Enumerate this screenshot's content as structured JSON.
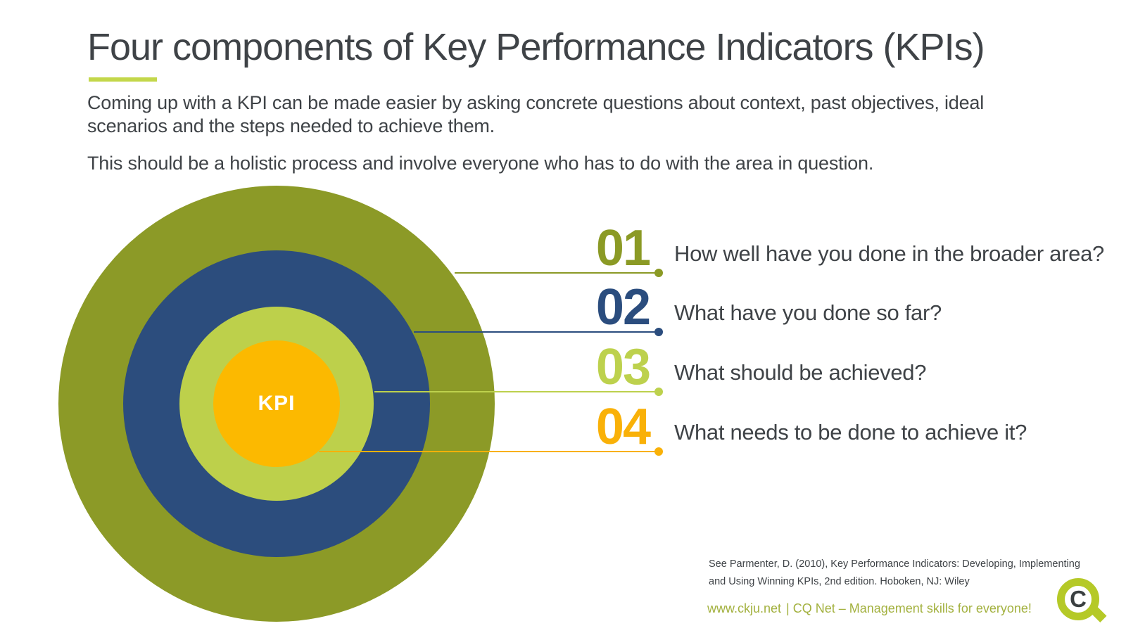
{
  "title": "Four components of Key Performance Indicators (KPIs)",
  "intro": {
    "p1_line1": "Coming up with a KPI can be made easier by asking concrete questions about context, past objectives, ideal",
    "p1_line2": "scenarios and the steps needed to achieve them.",
    "p2": "This should be a holistic process and involve everyone who has to do with the area in question."
  },
  "diagram": {
    "center_label": "KPI",
    "ring_colors": {
      "broader_area": "#8c9a27",
      "done_so_far": "#2c4d7d",
      "to_achieve": "#bdd04b",
      "kpi_core": "#fcb900"
    }
  },
  "items": [
    {
      "number": "01",
      "color": "#8b9a25",
      "question": "How well have you done in the broader area?"
    },
    {
      "number": "02",
      "color": "#2b4d7e",
      "question": "What have you done so far?"
    },
    {
      "number": "03",
      "color": "#bdd14d",
      "question": "What should be achieved?"
    },
    {
      "number": "04",
      "color": "#f9b108",
      "question": "What needs to be done to achieve it?"
    }
  ],
  "footer": {
    "citation_line1": "See Parmenter, D. (2010), Key Performance Indicators: Developing, Implementing",
    "citation_line2": "and Using Winning KPIs, 2nd edition. Hoboken, NJ: Wiley",
    "tagline_url": "www.ckju.net",
    "tagline_rest": "| CQ Net – Management skills for everyone!",
    "logo_letter": "C"
  },
  "colors": {
    "text": "#3f4347",
    "accent_underline": "#c3d74a",
    "tagline_green": "#a3b13f",
    "logo_green": "#b5c927",
    "logo_letter_gray": "#3a3f41"
  }
}
